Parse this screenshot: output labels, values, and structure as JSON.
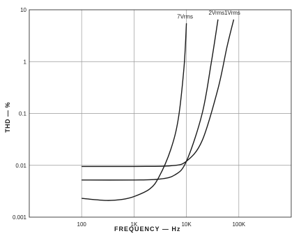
{
  "chart_data": {
    "type": "line",
    "xlabel": "FREQUENCY — Hz",
    "ylabel": "THD — %",
    "x_scale": "log",
    "y_scale": "log",
    "xlim": [
      10,
      1000000
    ],
    "ylim": [
      0.001,
      10
    ],
    "x_tick_labels": [
      "100",
      "1K",
      "10K",
      "100K"
    ],
    "x_ticks": [
      100,
      1000,
      10000,
      100000
    ],
    "y_tick_labels": [
      "0.001",
      "0.01",
      "0.1",
      "1",
      "10"
    ],
    "y_ticks": [
      0.001,
      0.01,
      0.1,
      1,
      10
    ],
    "grid": true,
    "series": [
      {
        "name": "7Vrms",
        "points": [
          [
            100,
            0.0023
          ],
          [
            300,
            0.0021
          ],
          [
            600,
            0.0022
          ],
          [
            1000,
            0.0025
          ],
          [
            2000,
            0.0035
          ],
          [
            3000,
            0.006
          ],
          [
            5000,
            0.02
          ],
          [
            7000,
            0.08
          ],
          [
            9000,
            0.8
          ],
          [
            10000,
            5.5
          ]
        ]
      },
      {
        "name": "2Vrms",
        "points": [
          [
            100,
            0.0052
          ],
          [
            1000,
            0.0052
          ],
          [
            3000,
            0.0054
          ],
          [
            6000,
            0.0065
          ],
          [
            10000,
            0.012
          ],
          [
            20000,
            0.1
          ],
          [
            30000,
            1.0
          ],
          [
            40000,
            6.5
          ]
        ]
      },
      {
        "name": "1Vrms",
        "points": [
          [
            100,
            0.0095
          ],
          [
            1000,
            0.0095
          ],
          [
            5000,
            0.0098
          ],
          [
            10000,
            0.012
          ],
          [
            20000,
            0.03
          ],
          [
            40000,
            0.3
          ],
          [
            60000,
            2.0
          ],
          [
            80000,
            6.5
          ]
        ]
      }
    ]
  }
}
